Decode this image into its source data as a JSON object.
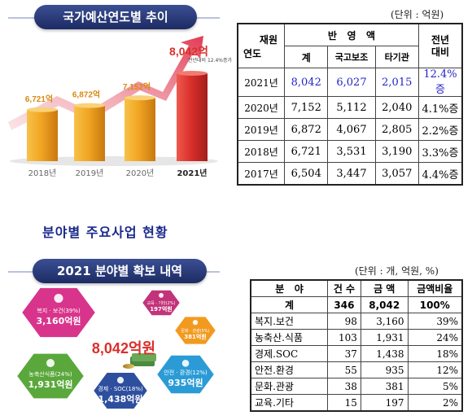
{
  "top_banner": "국가예산연도별 추이",
  "top_unit": "(단위 : 억원)",
  "chart_data": {
    "type": "bar",
    "categories": [
      "2018년",
      "2019년",
      "2020년",
      "2021년"
    ],
    "values": [
      6721,
      6872,
      7152,
      8042
    ],
    "value_labels": [
      "6,721억",
      "6,872억",
      "7,152억",
      "8,042억"
    ],
    "annotation": "전년대비 12.4%증가",
    "highlight_index": 3,
    "colors": {
      "normal": "#f2a623",
      "highlight": "#d9302b"
    }
  },
  "budget_table": {
    "corner_top": "재원",
    "corner_bottom": "연도",
    "group_header": "반   영   액",
    "last_header": "전년\n대비",
    "columns": [
      "계",
      "국고보조",
      "타기관"
    ],
    "rows": [
      {
        "year": "2021년",
        "total": "8,042",
        "national": "6,027",
        "other": "2,015",
        "change": "12.4%증",
        "highlight": true
      },
      {
        "year": "2020년",
        "total": "7,152",
        "national": "5,112",
        "other": "2,040",
        "change": "4.1%증",
        "highlight": false
      },
      {
        "year": "2019년",
        "total": "6,872",
        "national": "4,067",
        "other": "2,805",
        "change": "2.2%증",
        "highlight": false
      },
      {
        "year": "2018년",
        "total": "6,721",
        "national": "3,531",
        "other": "3,190",
        "change": "3.3%증",
        "highlight": false
      },
      {
        "year": "2017년",
        "total": "6,504",
        "national": "3,447",
        "other": "3,057",
        "change": "4.4%증",
        "highlight": false
      }
    ]
  },
  "section_title": "분야별 주요사업 현황",
  "bottom_banner": "2021 분야별 확보 내역",
  "bottom_unit": "(단위 : 개, 억원, %)",
  "diagram": {
    "center_value": "8,042억원",
    "hexagons": [
      {
        "label": "복지 · 보건(39%)",
        "value": "3,160억원",
        "color": "#d8348c",
        "icon": "family-icon"
      },
      {
        "label": "농축산식품(24%)",
        "value": "1,931억원",
        "color": "#5aa83c",
        "icon": "farm-icon"
      },
      {
        "label": "경제 · SOC(18%)",
        "value": "1,438억원",
        "color": "#2e4f9e",
        "icon": "gear-icon"
      },
      {
        "label": "안전 · 환경(12%)",
        "value": "935억원",
        "color": "#2b9bd6",
        "icon": "shield-icon"
      },
      {
        "label": "문화 · 관광(5%)",
        "value": "381억원",
        "color": "#f29a1f",
        "icon": "culture-icon"
      },
      {
        "label": "교육 · 기타(2%)",
        "value": "197억원",
        "color": "#c2337a",
        "icon": "book-icon"
      }
    ]
  },
  "field_table": {
    "headers": [
      "분   야",
      "건 수",
      "금 액",
      "금액비율"
    ],
    "total": {
      "field": "계",
      "count": "346",
      "amount": "8,042",
      "ratio": "100%"
    },
    "rows": [
      {
        "field": "복지.보건",
        "count": "98",
        "amount": "3,160",
        "ratio": "39%"
      },
      {
        "field": "농축산.식품",
        "count": "103",
        "amount": "1,931",
        "ratio": "24%"
      },
      {
        "field": "경제.SOC",
        "count": "37",
        "amount": "1,438",
        "ratio": "18%"
      },
      {
        "field": "안전.환경",
        "count": "55",
        "amount": "935",
        "ratio": "12%"
      },
      {
        "field": "문화.관광",
        "count": "38",
        "amount": "381",
        "ratio": "5%"
      },
      {
        "field": "교육.기타",
        "count": "15",
        "amount": "197",
        "ratio": "2%"
      }
    ]
  }
}
